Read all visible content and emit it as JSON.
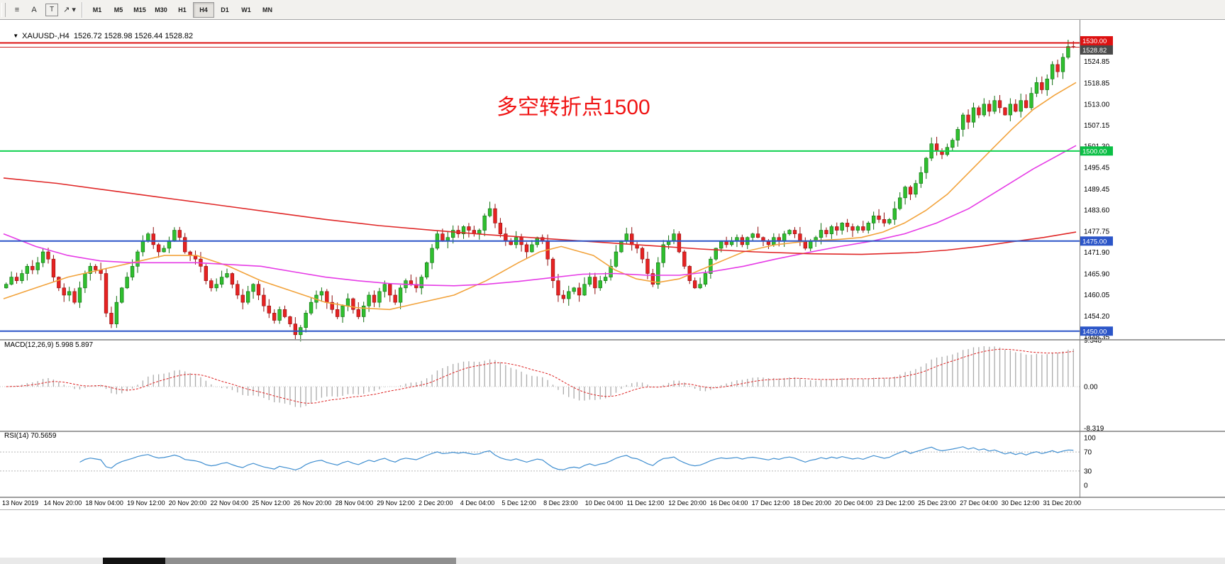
{
  "window": {
    "symbol_ohlc": "XAUUSD-,H4  1526.72 1528.98 1526.44 1528.82",
    "collapse_icon": "▼"
  },
  "toolbar": {
    "tool_buttons": [
      {
        "id": "line-studies",
        "icon": "≡",
        "boxed": false
      },
      {
        "id": "text-annotation",
        "icon": "A",
        "boxed": false
      },
      {
        "id": "text-label",
        "icon": "T",
        "boxed": true
      },
      {
        "id": "arrow-tools",
        "icon": "↗",
        "dropdown": "▾",
        "boxed": false
      }
    ],
    "timeframes": [
      {
        "label": "M1",
        "active": false
      },
      {
        "label": "M5",
        "active": false
      },
      {
        "label": "M15",
        "active": false
      },
      {
        "label": "M30",
        "active": false
      },
      {
        "label": "H1",
        "active": false
      },
      {
        "label": "H4",
        "active": true
      },
      {
        "label": "D1",
        "active": false
      },
      {
        "label": "W1",
        "active": false
      },
      {
        "label": "MN",
        "active": false
      }
    ]
  },
  "chart_data": {
    "type": "candlestick",
    "symbol": "XAUUSD-",
    "timeframe": "H4",
    "annotation": "多空转折点1500",
    "annotation_color": "#f01515",
    "up_color": "#2fbf2f",
    "down_color": "#e62222",
    "price_range": {
      "min": 1447.0,
      "max": 1536.0
    },
    "price_axis_labels": [
      "1524.85",
      "1518.85",
      "1513.00",
      "1507.15",
      "1501.30",
      "1495.45",
      "1489.45",
      "1483.60",
      "1477.75",
      "1471.90",
      "1465.90",
      "1460.05",
      "1454.20",
      "1448.35"
    ],
    "hlines": [
      {
        "price": 1530.0,
        "tag": "1530.00",
        "color": "#dd1111",
        "tag_bg": "#dd1111",
        "width": 2,
        "tag_dy": -3
      },
      {
        "price": 1528.82,
        "tag": "1528.82",
        "color": "#cc2222",
        "tag_bg": "#4a4a4a",
        "width": 1,
        "tag_dy": 4
      },
      {
        "price": 1500.0,
        "tag": "1500.00",
        "color": "#0fd14f",
        "tag_bg": "#0bbf45",
        "width": 2,
        "tag_dy": 0
      },
      {
        "price": 1475.0,
        "tag": "1475.00",
        "color": "#2b55c8",
        "tag_bg": "#2b55c8",
        "width": 2,
        "tag_dy": 0
      },
      {
        "price": 1450.0,
        "tag": "1450.00",
        "color": "#2b55c8",
        "tag_bg": "#2b55c8",
        "width": 2,
        "tag_dy": 0
      }
    ],
    "candles": {
      "first_open": 1462,
      "closes": [
        1463,
        1465,
        1464,
        1466,
        1468,
        1467,
        1469,
        1472,
        1470,
        1465,
        1462,
        1460,
        1461,
        1458,
        1462,
        1466,
        1468,
        1467,
        1466,
        1455,
        1452,
        1458,
        1462,
        1465,
        1468,
        1472,
        1475,
        1477,
        1474,
        1472,
        1473,
        1475,
        1478,
        1476,
        1472,
        1471,
        1470,
        1468,
        1464,
        1462,
        1463,
        1465,
        1466,
        1463,
        1460,
        1458,
        1461,
        1463,
        1460,
        1457,
        1455,
        1453,
        1456,
        1454,
        1452,
        1449,
        1451,
        1455,
        1458,
        1460,
        1461,
        1458,
        1456,
        1454,
        1457,
        1459,
        1456,
        1454,
        1457,
        1460,
        1458,
        1461,
        1463,
        1460,
        1458,
        1462,
        1464,
        1463,
        1462,
        1465,
        1469,
        1473,
        1477,
        1475,
        1476,
        1478,
        1477,
        1479,
        1478,
        1477,
        1478,
        1482,
        1484,
        1480,
        1477,
        1475,
        1474,
        1476,
        1474,
        1472,
        1474,
        1476,
        1475,
        1470,
        1464,
        1460,
        1459,
        1461,
        1462,
        1460,
        1463,
        1465,
        1462,
        1464,
        1465,
        1468,
        1472,
        1475,
        1477,
        1474,
        1473,
        1470,
        1466,
        1463,
        1469,
        1474,
        1475,
        1477,
        1472,
        1468,
        1464,
        1462,
        1463,
        1466,
        1470,
        1473,
        1475,
        1474,
        1475,
        1476,
        1474,
        1476,
        1477,
        1476,
        1475,
        1474,
        1476,
        1475,
        1477,
        1478,
        1477,
        1475,
        1473,
        1475,
        1476,
        1478,
        1477,
        1479,
        1478,
        1480,
        1479,
        1478,
        1479,
        1478,
        1480,
        1482,
        1481,
        1480,
        1481,
        1484,
        1487,
        1490,
        1488,
        1491,
        1494,
        1498,
        1502,
        1500,
        1499,
        1501,
        1503,
        1506,
        1510,
        1508,
        1512,
        1510,
        1513,
        1511,
        1514,
        1512,
        1510,
        1513,
        1511,
        1514,
        1512,
        1516,
        1519,
        1517,
        1520,
        1524,
        1522,
        1526,
        1529,
        1528.8
      ]
    },
    "moving_averages": [
      {
        "name": "fast",
        "color": "#f2a33c",
        "points": [
          [
            0.0,
            1459
          ],
          [
            0.03,
            1462
          ],
          [
            0.06,
            1465
          ],
          [
            0.09,
            1467
          ],
          [
            0.12,
            1469
          ],
          [
            0.15,
            1471
          ],
          [
            0.18,
            1471
          ],
          [
            0.21,
            1468
          ],
          [
            0.24,
            1464
          ],
          [
            0.27,
            1461
          ],
          [
            0.3,
            1458
          ],
          [
            0.33,
            1456.5
          ],
          [
            0.36,
            1456
          ],
          [
            0.39,
            1458
          ],
          [
            0.42,
            1460
          ],
          [
            0.45,
            1464
          ],
          [
            0.48,
            1469
          ],
          [
            0.5,
            1472
          ],
          [
            0.52,
            1473.5
          ],
          [
            0.55,
            1471
          ],
          [
            0.57,
            1467
          ],
          [
            0.59,
            1464.5
          ],
          [
            0.61,
            1463.5
          ],
          [
            0.63,
            1464.5
          ],
          [
            0.65,
            1467
          ],
          [
            0.67,
            1469.5
          ],
          [
            0.69,
            1472
          ],
          [
            0.72,
            1474
          ],
          [
            0.75,
            1475
          ],
          [
            0.78,
            1475.5
          ],
          [
            0.8,
            1476
          ],
          [
            0.82,
            1477.5
          ],
          [
            0.84,
            1480
          ],
          [
            0.86,
            1483.5
          ],
          [
            0.88,
            1488
          ],
          [
            0.9,
            1494
          ],
          [
            0.92,
            1500
          ],
          [
            0.94,
            1506
          ],
          [
            0.96,
            1511.5
          ],
          [
            0.98,
            1515.5
          ],
          [
            1.0,
            1519
          ]
        ]
      },
      {
        "name": "mid",
        "color": "#e63ce6",
        "points": [
          [
            0.0,
            1477
          ],
          [
            0.03,
            1473.5
          ],
          [
            0.06,
            1471
          ],
          [
            0.09,
            1469.5
          ],
          [
            0.12,
            1469
          ],
          [
            0.15,
            1469
          ],
          [
            0.18,
            1469
          ],
          [
            0.21,
            1468.5
          ],
          [
            0.24,
            1468
          ],
          [
            0.27,
            1466.5
          ],
          [
            0.3,
            1465
          ],
          [
            0.33,
            1464
          ],
          [
            0.36,
            1463.2
          ],
          [
            0.39,
            1462.8
          ],
          [
            0.42,
            1462.6
          ],
          [
            0.45,
            1463
          ],
          [
            0.48,
            1463.8
          ],
          [
            0.51,
            1464.8
          ],
          [
            0.54,
            1465.8
          ],
          [
            0.57,
            1466
          ],
          [
            0.6,
            1465.5
          ],
          [
            0.63,
            1465.5
          ],
          [
            0.66,
            1466.5
          ],
          [
            0.69,
            1468
          ],
          [
            0.72,
            1470
          ],
          [
            0.75,
            1471.8
          ],
          [
            0.78,
            1473.5
          ],
          [
            0.81,
            1475
          ],
          [
            0.84,
            1477
          ],
          [
            0.87,
            1480
          ],
          [
            0.9,
            1484
          ],
          [
            0.93,
            1489.5
          ],
          [
            0.96,
            1495
          ],
          [
            1.0,
            1501.5
          ]
        ]
      },
      {
        "name": "slow",
        "color": "#e02828",
        "points": [
          [
            0.0,
            1492.5
          ],
          [
            0.05,
            1491
          ],
          [
            0.1,
            1489
          ],
          [
            0.15,
            1487
          ],
          [
            0.2,
            1485
          ],
          [
            0.25,
            1483
          ],
          [
            0.3,
            1481
          ],
          [
            0.35,
            1479.3
          ],
          [
            0.4,
            1478
          ],
          [
            0.45,
            1476.8
          ],
          [
            0.5,
            1475.8
          ],
          [
            0.55,
            1474.8
          ],
          [
            0.6,
            1473.8
          ],
          [
            0.65,
            1472.8
          ],
          [
            0.7,
            1472
          ],
          [
            0.75,
            1471.5
          ],
          [
            0.8,
            1471.3
          ],
          [
            0.85,
            1471.8
          ],
          [
            0.88,
            1472.5
          ],
          [
            0.91,
            1473.5
          ],
          [
            0.94,
            1474.8
          ],
          [
            0.97,
            1476
          ],
          [
            1.0,
            1477.5
          ]
        ]
      }
    ],
    "time_axis_labels": [
      "13 Nov 2019",
      "14 Nov 20:00",
      "18 Nov 04:00",
      "19 Nov 12:00",
      "20 Nov 20:00",
      "22 Nov 04:00",
      "25 Nov 12:00",
      "26 Nov 20:00",
      "28 Nov 04:00",
      "29 Nov 12:00",
      "2 Dec 20:00",
      "4 Dec 04:00",
      "5 Dec 12:00",
      "8 Dec 23:00",
      "10 Dec 04:00",
      "11 Dec 12:00",
      "12 Dec 20:00",
      "16 Dec 04:00",
      "17 Dec 12:00",
      "18 Dec 20:00",
      "20 Dec 04:00",
      "23 Dec 12:00",
      "25 Dec 23:00",
      "27 Dec 04:00",
      "30 Dec 12:00",
      "31 Dec 20:00"
    ],
    "macd": {
      "label": "MACD(12,26,9) 5.998 5.897",
      "fast": 12,
      "slow": 26,
      "signal": 9,
      "axis_labels": [
        "9.348",
        "0.00",
        "-8.319"
      ],
      "color_hist": "#ababab",
      "color_signal": "#dd2222"
    },
    "rsi": {
      "label": "RSI(14) 70.5659",
      "period": 14,
      "axis_labels": [
        "100",
        "70",
        "30",
        "0"
      ],
      "levels": [
        70,
        30
      ],
      "color": "#3f8ed0"
    }
  }
}
